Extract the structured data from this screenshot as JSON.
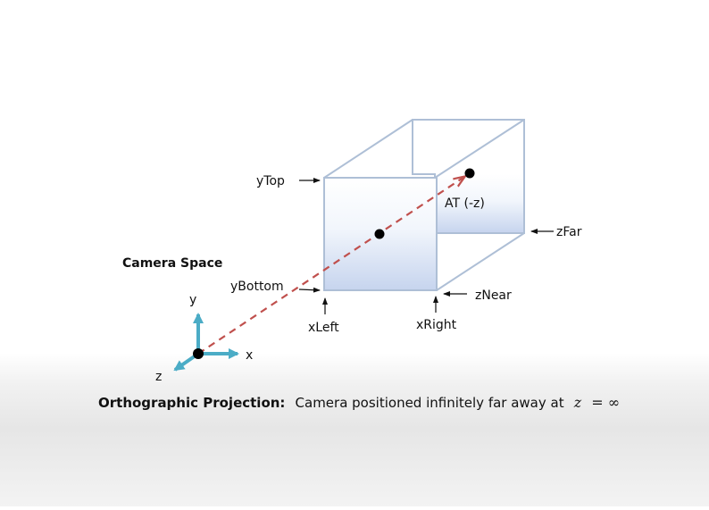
{
  "heading": "Camera Space",
  "frustum_labels": {
    "y_top": "yTop",
    "y_bottom": "yBottom",
    "x_left": "xLeft",
    "x_right": "xRight",
    "z_near": "zNear",
    "z_far": "zFar",
    "at": "AT (-z)"
  },
  "axes": {
    "x": "x",
    "y": "y",
    "z": "z"
  },
  "caption": {
    "bold": "Orthographic Projection:",
    "text": "Camera positioned infinitely far away at",
    "math_var": "z",
    "math_rest": "= ∞"
  },
  "colors": {
    "box_edge": "#aebfd6",
    "face_gradient_top": "#ffffff",
    "face_gradient_bottom": "#c6d4ee",
    "view_ray": "#c0504d",
    "axis": "#4bacc6"
  }
}
